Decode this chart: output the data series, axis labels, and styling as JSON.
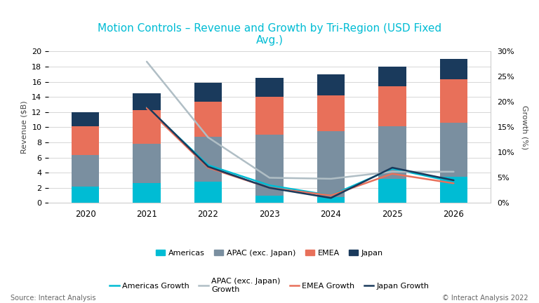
{
  "years": [
    2020,
    2021,
    2022,
    2023,
    2024,
    2025,
    2026
  ],
  "americas": [
    2.2,
    2.6,
    2.8,
    1.0,
    0.8,
    3.2,
    3.5
  ],
  "apac": [
    4.1,
    5.2,
    5.9,
    8.0,
    8.7,
    6.9,
    7.1
  ],
  "emea": [
    3.8,
    4.5,
    4.7,
    5.0,
    4.7,
    5.3,
    5.7
  ],
  "japan": [
    1.9,
    2.2,
    2.5,
    2.5,
    2.8,
    2.6,
    2.7
  ],
  "growth_americas": [
    null,
    19.0,
    7.5,
    3.5,
    1.5,
    6.8,
    4.2
  ],
  "growth_apac": [
    null,
    28.0,
    13.0,
    5.0,
    4.8,
    6.2,
    6.2
  ],
  "growth_emea": [
    null,
    18.8,
    7.0,
    3.0,
    1.5,
    5.8,
    3.9
  ],
  "growth_japan": [
    null,
    19.2,
    7.2,
    3.0,
    1.0,
    7.0,
    4.5
  ],
  "color_americas": "#00BCD4",
  "color_apac": "#7a8fa0",
  "color_emea": "#E8705A",
  "color_japan": "#1a3a5c",
  "color_line_americas": "#00BCD4",
  "color_line_apac": "#b0bec5",
  "color_line_emea": "#E8705A",
  "color_line_japan": "#1a3a5c",
  "title": "Motion Controls – Revenue and Growth by Tri-Region (USD Fixed\nAvg.)",
  "ylabel_left": "Revenue ($B)",
  "ylabel_right": "Growth (%)",
  "ylim_left": [
    0,
    20
  ],
  "ylim_right": [
    0,
    30
  ],
  "yticks_left": [
    0,
    2,
    4,
    6,
    8,
    10,
    12,
    14,
    16,
    18,
    20
  ],
  "yticks_right": [
    0,
    5,
    10,
    15,
    20,
    25,
    30
  ],
  "ytick_labels_right": [
    "0%",
    "5%",
    "10%",
    "15%",
    "20%",
    "25%",
    "30%"
  ],
  "source_text": "Source: Interact Analysis",
  "copyright_text": "© Interact Analysis 2022",
  "background_color": "#ffffff",
  "title_color": "#00BCD4",
  "bar_width": 0.45
}
